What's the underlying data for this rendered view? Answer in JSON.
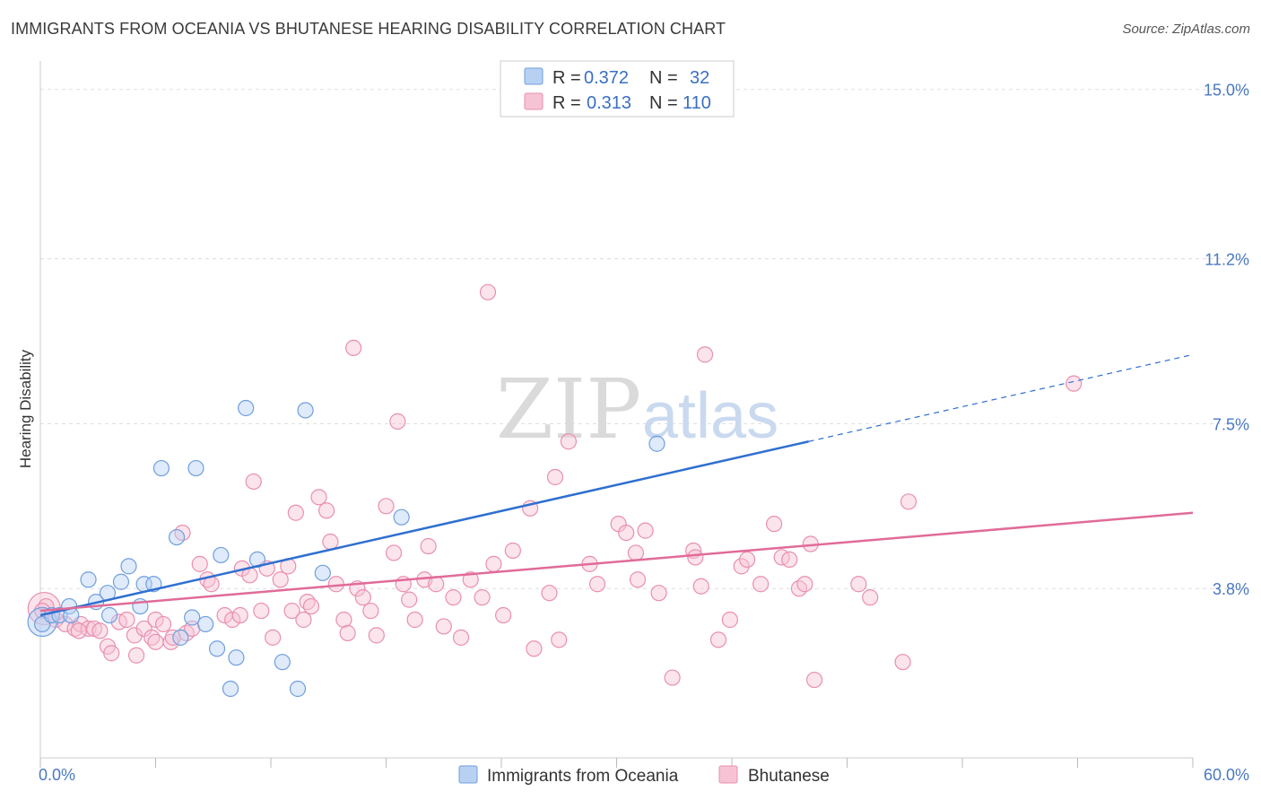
{
  "title": "IMMIGRANTS FROM OCEANIA VS BHUTANESE HEARING DISABILITY CORRELATION CHART",
  "source": "Source: ZipAtlas.com",
  "watermark": {
    "part1": "ZIP",
    "part2": "atlas"
  },
  "legend": {
    "rows": [
      {
        "r_label": "R = ",
        "r_value": "0.372",
        "n_label": "N = ",
        "n_value": "32"
      },
      {
        "r_label": "R = ",
        "r_value": "0.313",
        "n_label": "N = ",
        "n_value": "110"
      }
    ]
  },
  "bottom_legend": [
    "Immigrants from Oceania",
    "Bhutanese"
  ],
  "colors": {
    "blue": "#6f9fde",
    "blue_fill": "#b8d1f3",
    "blue_line": "#2f6fd0",
    "pink": "#e98fb0",
    "pink_fill": "#f6c3d5",
    "pink_line": "#e06b98",
    "grid": "#dddddd",
    "tick_text": "#4a78c2"
  },
  "chart_data": {
    "type": "scatter",
    "title": "IMMIGRANTS FROM OCEANIA VS BHUTANESE HEARING DISABILITY CORRELATION CHART",
    "xlabel": "",
    "ylabel": "Hearing Disability",
    "xlim": [
      0,
      60
    ],
    "ylim": [
      0,
      15.8
    ],
    "x_tick_labels": [
      "0.0%",
      "60.0%"
    ],
    "y_ticks": [
      3.8,
      7.5,
      11.2,
      15.0
    ],
    "y_tick_labels": [
      "3.8%",
      "7.5%",
      "11.2%",
      "15.0%"
    ],
    "grid": true,
    "legend_position": "top-center",
    "series": [
      {
        "name": "Immigrants from Oceania",
        "color": "#6f9fde",
        "R": 0.372,
        "N": 32,
        "trend": {
          "x0": 0,
          "y0": 3.2,
          "x1": 40,
          "y1": 7.1,
          "dashed_to_x": 60,
          "dashed_to_y": 9.05
        },
        "points": [
          [
            0.1,
            3.0
          ],
          [
            0.6,
            3.2
          ],
          [
            1.0,
            3.2
          ],
          [
            1.5,
            3.4
          ],
          [
            1.6,
            3.2
          ],
          [
            2.5,
            4.0
          ],
          [
            2.9,
            3.5
          ],
          [
            3.5,
            3.7
          ],
          [
            3.6,
            3.2
          ],
          [
            4.2,
            3.95
          ],
          [
            4.6,
            4.3
          ],
          [
            5.2,
            3.4
          ],
          [
            5.4,
            3.9
          ],
          [
            5.9,
            3.9
          ],
          [
            6.3,
            6.5
          ],
          [
            7.1,
            4.95
          ],
          [
            7.3,
            2.7
          ],
          [
            7.9,
            3.15
          ],
          [
            8.1,
            6.5
          ],
          [
            8.6,
            3.0
          ],
          [
            9.2,
            2.45
          ],
          [
            9.4,
            4.55
          ],
          [
            9.9,
            1.55
          ],
          [
            10.2,
            2.25
          ],
          [
            10.7,
            7.85
          ],
          [
            11.3,
            4.45
          ],
          [
            12.6,
            2.15
          ],
          [
            13.8,
            7.8
          ],
          [
            13.4,
            1.55
          ],
          [
            14.7,
            4.15
          ],
          [
            18.8,
            5.4
          ],
          [
            32.1,
            7.05
          ]
        ]
      },
      {
        "name": "Bhutanese",
        "color": "#e98fb0",
        "R": 0.313,
        "N": 110,
        "trend": {
          "x0": 0,
          "y0": 3.3,
          "x1": 60,
          "y1": 5.5
        },
        "points": [
          [
            0.3,
            3.4
          ],
          [
            0.8,
            3.1
          ],
          [
            1.3,
            3.0
          ],
          [
            1.8,
            2.9
          ],
          [
            2.1,
            3.0
          ],
          [
            2.5,
            2.9
          ],
          [
            2.8,
            2.9
          ],
          [
            3.1,
            2.85
          ],
          [
            3.5,
            2.5
          ],
          [
            3.7,
            2.35
          ],
          [
            4.1,
            3.05
          ],
          [
            4.5,
            3.1
          ],
          [
            4.9,
            2.75
          ],
          [
            5.0,
            2.3
          ],
          [
            5.4,
            2.9
          ],
          [
            5.8,
            2.7
          ],
          [
            6.0,
            3.1
          ],
          [
            6.4,
            3.0
          ],
          [
            6.8,
            2.6
          ],
          [
            6.9,
            2.7
          ],
          [
            7.4,
            5.05
          ],
          [
            7.6,
            2.8
          ],
          [
            7.9,
            2.9
          ],
          [
            8.3,
            4.35
          ],
          [
            8.7,
            4.0
          ],
          [
            8.9,
            3.9
          ],
          [
            9.6,
            3.2
          ],
          [
            10.0,
            3.1
          ],
          [
            10.4,
            3.2
          ],
          [
            10.5,
            4.25
          ],
          [
            10.9,
            4.1
          ],
          [
            11.1,
            6.2
          ],
          [
            11.5,
            3.3
          ],
          [
            11.8,
            4.25
          ],
          [
            12.1,
            2.7
          ],
          [
            12.5,
            4.0
          ],
          [
            12.9,
            4.3
          ],
          [
            13.1,
            3.3
          ],
          [
            13.3,
            5.5
          ],
          [
            13.7,
            3.1
          ],
          [
            13.9,
            3.5
          ],
          [
            14.1,
            3.4
          ],
          [
            14.5,
            5.85
          ],
          [
            14.9,
            5.55
          ],
          [
            15.1,
            4.85
          ],
          [
            15.4,
            3.9
          ],
          [
            15.8,
            3.1
          ],
          [
            16.0,
            2.8
          ],
          [
            16.3,
            9.2
          ],
          [
            16.5,
            3.8
          ],
          [
            16.8,
            3.6
          ],
          [
            17.2,
            3.3
          ],
          [
            17.5,
            2.75
          ],
          [
            18.0,
            5.65
          ],
          [
            18.4,
            4.6
          ],
          [
            18.6,
            7.55
          ],
          [
            18.9,
            3.9
          ],
          [
            19.2,
            3.55
          ],
          [
            19.5,
            3.1
          ],
          [
            20.0,
            4.0
          ],
          [
            20.2,
            4.75
          ],
          [
            20.6,
            3.9
          ],
          [
            21.0,
            2.95
          ],
          [
            21.5,
            3.6
          ],
          [
            21.9,
            2.7
          ],
          [
            22.4,
            4.0
          ],
          [
            23.0,
            3.6
          ],
          [
            23.3,
            10.45
          ],
          [
            23.6,
            4.35
          ],
          [
            24.1,
            3.2
          ],
          [
            24.6,
            4.65
          ],
          [
            25.5,
            5.6
          ],
          [
            25.7,
            2.45
          ],
          [
            26.5,
            3.7
          ],
          [
            26.8,
            6.3
          ],
          [
            27.0,
            2.65
          ],
          [
            27.5,
            7.1
          ],
          [
            28.6,
            4.35
          ],
          [
            29.0,
            3.9
          ],
          [
            30.1,
            5.25
          ],
          [
            30.5,
            5.05
          ],
          [
            31.0,
            4.6
          ],
          [
            31.1,
            4.0
          ],
          [
            31.5,
            5.1
          ],
          [
            32.2,
            3.7
          ],
          [
            32.9,
            1.8
          ],
          [
            34.0,
            4.65
          ],
          [
            34.1,
            4.5
          ],
          [
            34.4,
            3.85
          ],
          [
            34.6,
            9.05
          ],
          [
            35.3,
            2.65
          ],
          [
            35.9,
            3.1
          ],
          [
            36.5,
            4.3
          ],
          [
            36.8,
            4.45
          ],
          [
            37.5,
            3.9
          ],
          [
            38.2,
            5.25
          ],
          [
            38.6,
            4.5
          ],
          [
            39.0,
            4.45
          ],
          [
            39.5,
            3.8
          ],
          [
            39.8,
            3.9
          ],
          [
            40.1,
            4.8
          ],
          [
            40.3,
            1.75
          ],
          [
            42.6,
            3.9
          ],
          [
            43.2,
            3.6
          ],
          [
            45.2,
            5.75
          ],
          [
            44.9,
            2.15
          ],
          [
            53.8,
            8.4
          ],
          [
            0.1,
            3.3
          ],
          [
            2.0,
            2.85
          ],
          [
            6.0,
            2.6
          ]
        ]
      }
    ]
  }
}
